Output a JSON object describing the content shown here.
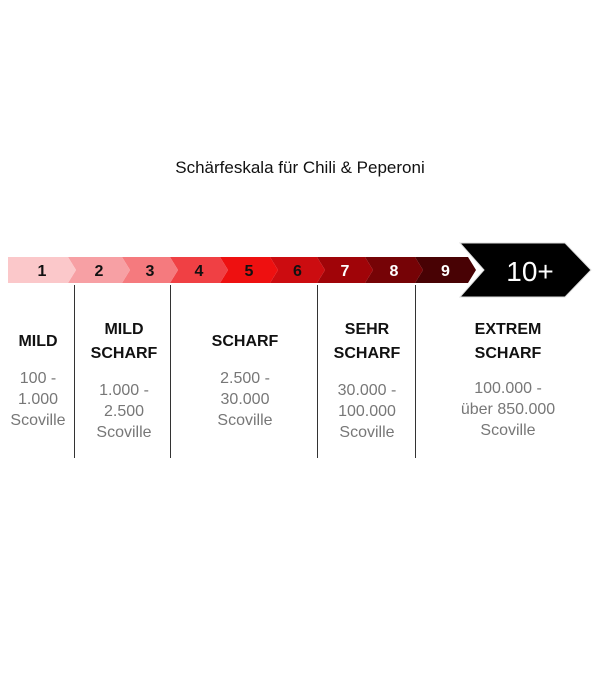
{
  "title": "Schärfeskala für Chili & Peperoni",
  "scale": [
    {
      "label": "1",
      "color": "#fbc8ca",
      "text": "#111"
    },
    {
      "label": "2",
      "color": "#f7a0a4",
      "text": "#111"
    },
    {
      "label": "3",
      "color": "#f57a7e",
      "text": "#111"
    },
    {
      "label": "4",
      "color": "#f04044",
      "text": "#111"
    },
    {
      "label": "5",
      "color": "#ee1010",
      "text": "#111"
    },
    {
      "label": "6",
      "color": "#cc0c10",
      "text": "#111"
    },
    {
      "label": "7",
      "color": "#a00408",
      "text": "#fff"
    },
    {
      "label": "8",
      "color": "#760306",
      "text": "#fff"
    },
    {
      "label": "9",
      "color": "#480204",
      "text": "#fff"
    }
  ],
  "top": {
    "label": "10+",
    "color": "#000000"
  },
  "categories": [
    {
      "level": [
        "MILD"
      ],
      "range": [
        "100 -",
        "1.000",
        "Scoville"
      ]
    },
    {
      "level": [
        "MILD",
        "SCHARF"
      ],
      "range": [
        "1.000 -",
        "2.500",
        "Scoville"
      ]
    },
    {
      "level": [
        "SCHARF"
      ],
      "range": [
        "2.500 -",
        "30.000",
        "Scoville"
      ]
    },
    {
      "level": [
        "SEHR",
        "SCHARF"
      ],
      "range": [
        "30.000 -",
        "100.000",
        "Scoville"
      ]
    },
    {
      "level": [
        "EXTREM",
        "SCHARF"
      ],
      "range": [
        "100.000 -",
        "über 850.000",
        "Scoville"
      ]
    }
  ]
}
